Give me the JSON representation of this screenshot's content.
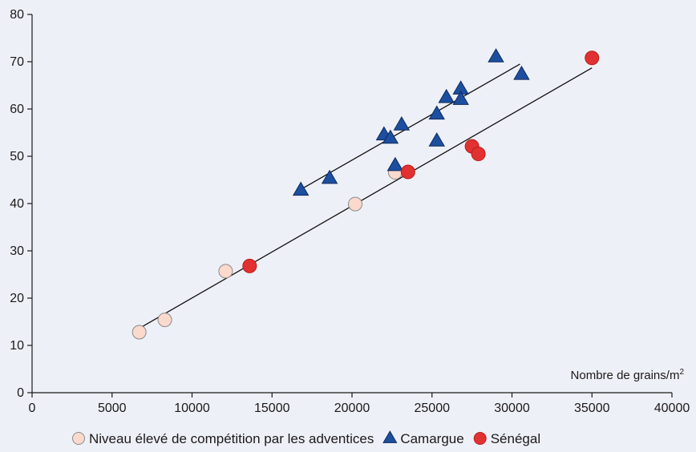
{
  "chart_data": {
    "type": "scatter",
    "title": "",
    "xlabel": "",
    "ylabel": "",
    "axis_annotation": {
      "main": "Nombre de grains/m",
      "superscript": "2"
    },
    "xlim": [
      0,
      40000
    ],
    "ylim": [
      0,
      80
    ],
    "x_ticks": [
      0,
      5000,
      10000,
      15000,
      20000,
      25000,
      30000,
      35000,
      40000
    ],
    "x_tick_labels": [
      "0",
      "5000",
      "10000",
      "15000",
      "20000",
      "25000",
      "30000",
      "35000",
      "40000"
    ],
    "y_ticks": [
      0,
      10,
      20,
      30,
      40,
      50,
      60,
      70,
      80
    ],
    "y_tick_labels": [
      "0",
      "10",
      "20",
      "30",
      "40",
      "50",
      "60",
      "70",
      "80"
    ],
    "grid": false,
    "legend_position": "bottom",
    "series": [
      {
        "name": "Niveau élevé de compétition par les adventices",
        "marker": "circle",
        "color": "#fbd9cc",
        "stroke": "#8a8a8a",
        "points": [
          {
            "x": 6700,
            "y": 12.8
          },
          {
            "x": 8300,
            "y": 15.4
          },
          {
            "x": 12100,
            "y": 25.7
          },
          {
            "x": 20200,
            "y": 39.9
          },
          {
            "x": 22700,
            "y": 46.6
          }
        ]
      },
      {
        "name": "Camargue",
        "marker": "triangle",
        "color": "#1c4fa0",
        "stroke": "#0d2a5c",
        "points": [
          {
            "x": 16800,
            "y": 42.8
          },
          {
            "x": 18600,
            "y": 45.3
          },
          {
            "x": 22000,
            "y": 54.5
          },
          {
            "x": 22400,
            "y": 53.8
          },
          {
            "x": 22700,
            "y": 48.0
          },
          {
            "x": 23100,
            "y": 56.6
          },
          {
            "x": 25300,
            "y": 58.9
          },
          {
            "x": 25300,
            "y": 53.2
          },
          {
            "x": 25900,
            "y": 62.4
          },
          {
            "x": 26800,
            "y": 64.2
          },
          {
            "x": 26800,
            "y": 62.0
          },
          {
            "x": 29000,
            "y": 71.0
          },
          {
            "x": 30600,
            "y": 67.3
          }
        ]
      },
      {
        "name": "Sénégal",
        "marker": "circle",
        "color": "#e23131",
        "stroke": "#b81e1e",
        "points": [
          {
            "x": 13600,
            "y": 26.8
          },
          {
            "x": 23500,
            "y": 46.7
          },
          {
            "x": 27500,
            "y": 52.1
          },
          {
            "x": 27900,
            "y": 50.5
          },
          {
            "x": 35000,
            "y": 70.8
          }
        ]
      }
    ],
    "trendlines": [
      {
        "x1": 6800,
        "y1": 13.8,
        "x2": 35000,
        "y2": 68.7
      },
      {
        "x1": 16800,
        "y1": 43.0,
        "x2": 30500,
        "y2": 69.5
      }
    ]
  }
}
